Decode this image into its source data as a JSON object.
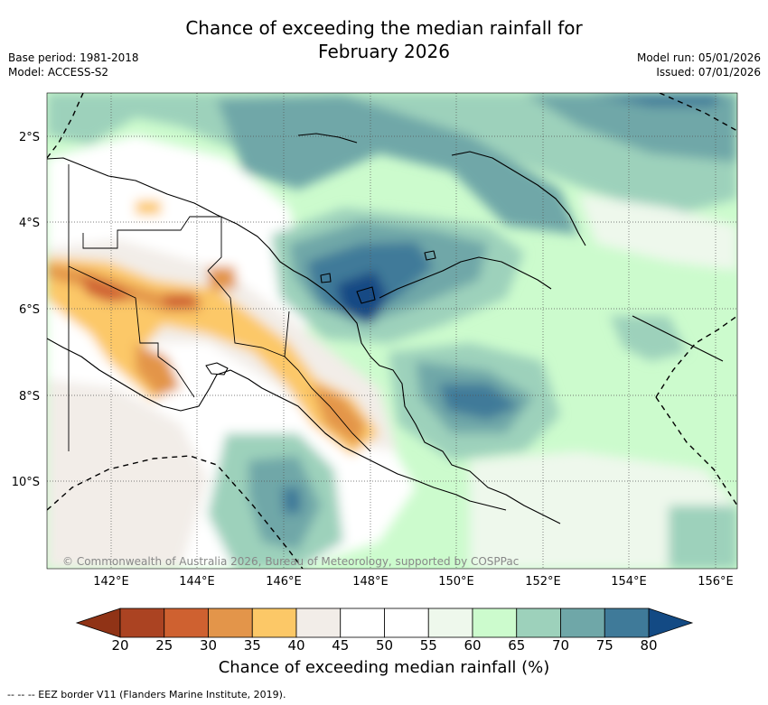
{
  "header": {
    "title_line1": "Chance of exceeding the median rainfall for",
    "title_line2": "February 2026",
    "base_period": "Base period: 1981-2018",
    "model": "Model: ACCESS-S2",
    "model_run": "Model run: 05/01/2026",
    "issued": "Issued: 07/01/2026"
  },
  "map": {
    "lat_labels": [
      "2°S",
      "4°S",
      "6°S",
      "8°S",
      "10°S"
    ],
    "lon_labels": [
      "142°E",
      "144°E",
      "146°E",
      "148°E",
      "150°E",
      "152°E",
      "154°E",
      "156°E"
    ],
    "copyright": "© Commonwealth of Australia 2026, Bureau of Meteorology, supported by COSPPac"
  },
  "colorbar": {
    "ticks": [
      "20",
      "25",
      "30",
      "35",
      "40",
      "45",
      "50",
      "55",
      "60",
      "65",
      "70",
      "75",
      "80"
    ],
    "colors": [
      "#ab4322",
      "#cf6130",
      "#e3954a",
      "#fcc867",
      "#f2ede8",
      "#ffffff",
      "#ffffff",
      "#eef8ec",
      "#ccfbcd",
      "#9dd1bb",
      "#6fa7a8",
      "#3f7a99"
    ],
    "under_color": "#903316",
    "over_color": "#134a84",
    "label": "Chance of exceeding median rainfall (%)"
  },
  "footnote": "--  --  -- EEZ border V11 (Flanders Marine Institute, 2019).",
  "colors": {
    "dry_strong": "#cf6130",
    "dry": "#fcc867",
    "neutral": "#f2ede8",
    "wet_light": "#ccfbcd",
    "wet": "#9dd1bb",
    "wet_strong": "#6fa7a8",
    "wet_stronger": "#3f7a99",
    "wet_max": "#134a84"
  }
}
